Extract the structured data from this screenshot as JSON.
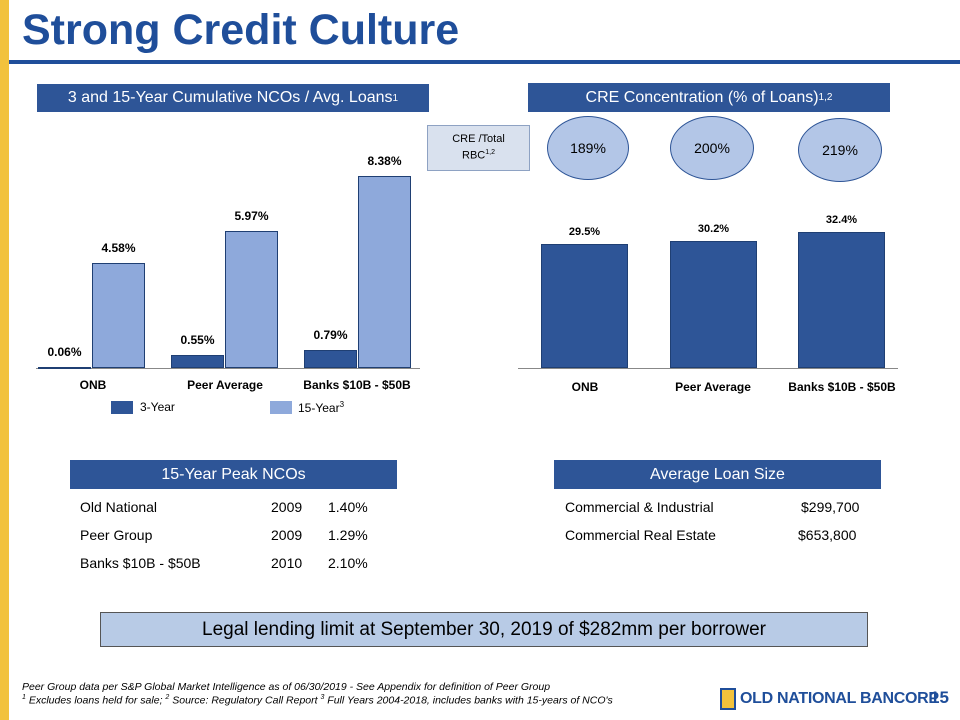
{
  "title": "Strong Credit Culture",
  "nco_chart_header": {
    "text": "3 and 15-Year Cumulative NCOs / Avg. Loans",
    "sup": "1"
  },
  "cre_header": {
    "text": "CRE Concentration (% of Loans)",
    "sup": "1,2"
  },
  "rbc_label": {
    "line1": "CRE /Total",
    "line2": "RBC",
    "sup": "1,2"
  },
  "rbc_values": [
    "189%",
    "200%",
    "219%"
  ],
  "chart_data": [
    {
      "type": "bar",
      "title": "3 and 15-Year Cumulative NCOs / Avg. Loans",
      "categories": [
        "ONB",
        "Peer Average",
        "Banks $10B - $50B"
      ],
      "series": [
        {
          "name": "3-Year",
          "values": [
            0.06,
            0.55,
            0.79
          ],
          "labels": [
            "0.06%",
            "0.55%",
            "0.79%"
          ]
        },
        {
          "name": "15-Year",
          "values": [
            4.58,
            5.97,
            8.38
          ],
          "labels": [
            "4.58%",
            "5.97%",
            "8.38%"
          ]
        }
      ],
      "ylim": [
        0,
        8.38
      ],
      "legend": [
        {
          "name": "3-Year",
          "sup": ""
        },
        {
          "name": "15-Year",
          "sup": "3"
        }
      ],
      "legend_position": "bottom"
    },
    {
      "type": "bar",
      "title": "CRE Concentration (% of Loans)",
      "categories": [
        "ONB",
        "Peer Average",
        "Banks $10B - $50B"
      ],
      "values": [
        29.5,
        30.2,
        32.4
      ],
      "labels": [
        "29.5%",
        "30.2%",
        "32.4%"
      ]
    }
  ],
  "colors": {
    "brand_blue": "#1F4E9A",
    "header_blue": "#2E5597",
    "bar_light": "#8EA9DB",
    "accent_yellow": "#F2C23C"
  },
  "peak_ncos": {
    "header": "15-Year Peak NCOs",
    "rows": [
      {
        "name": "Old National",
        "year": "2009",
        "value": "1.40%"
      },
      {
        "name": "Peer Group",
        "year": "2009",
        "value": "1.29%"
      },
      {
        "name": "Banks $10B - $50B",
        "year": "2010",
        "value": "2.10%"
      }
    ]
  },
  "avg_loan": {
    "header": "Average Loan Size",
    "rows": [
      {
        "name": "Commercial & Industrial",
        "value": "$299,700"
      },
      {
        "name": "Commercial Real Estate",
        "value": "$653,800"
      }
    ]
  },
  "legal_limit": "Legal lending limit at September 30, 2019 of $282mm per borrower",
  "footnotes": {
    "line1": "Peer Group data per S&P Global Market Intelligence as of 06/30/2019 - See Appendix for definition of Peer Group",
    "sup1": "1",
    "part1": " Excludes loans held for sale;  ",
    "sup2": "2",
    "part2": " Source: Regulatory Call Report ",
    "sup3": "3",
    "part3": " Full Years 2004-2018, includes banks with 15-years of NCO's"
  },
  "logo_text": "OLD NATIONAL BANCORP",
  "page_number": "15"
}
